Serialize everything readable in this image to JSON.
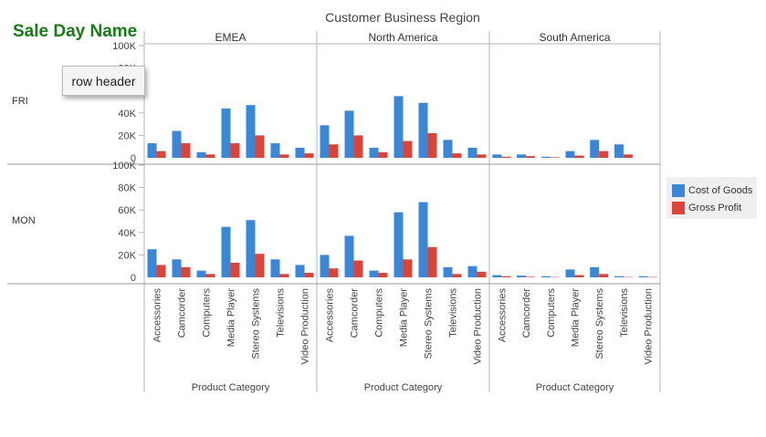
{
  "title": "Customer Business Region",
  "row_title": "Sale Day Name",
  "tooltip_text": "row header",
  "colors": {
    "cost": "#3a87d8",
    "profit": "#db4437",
    "row_title": "#1a7a1a"
  },
  "chart_data": {
    "type": "bar",
    "title": "Customer Business Region",
    "xlabel": "Product Category",
    "ylabel": "",
    "ylim": [
      0,
      100000
    ],
    "y_ticks": [
      "0",
      "20K",
      "40K",
      "60K",
      "80K",
      "100K"
    ],
    "y_tick_values": [
      0,
      20000,
      40000,
      60000,
      80000,
      100000
    ],
    "columns": [
      "EMEA",
      "North America",
      "South America"
    ],
    "rows": [
      "FRI",
      "MON"
    ],
    "categories": [
      "Accessories",
      "Camcorder",
      "Computers",
      "Media Player",
      "Stereo Systems",
      "Televisions",
      "Video Production"
    ],
    "legend": [
      "Cost of Goods",
      "Gross Profit"
    ],
    "legend_position": "right",
    "panels": [
      {
        "row": "FRI",
        "column": "EMEA",
        "series": [
          {
            "name": "Cost of Goods",
            "values": [
              13000,
              24000,
              5000,
              44000,
              47000,
              13000,
              9000
            ]
          },
          {
            "name": "Gross Profit",
            "values": [
              6000,
              13000,
              3000,
              13000,
              20000,
              3000,
              4000
            ]
          }
        ]
      },
      {
        "row": "FRI",
        "column": "North America",
        "series": [
          {
            "name": "Cost of Goods",
            "values": [
              29000,
              42000,
              9000,
              55000,
              49000,
              16000,
              9000
            ]
          },
          {
            "name": "Gross Profit",
            "values": [
              12000,
              20000,
              5000,
              15000,
              22000,
              4000,
              3000
            ]
          }
        ]
      },
      {
        "row": "FRI",
        "column": "South America",
        "series": [
          {
            "name": "Cost of Goods",
            "values": [
              3000,
              3000,
              1000,
              6000,
              16000,
              12000,
              null
            ]
          },
          {
            "name": "Gross Profit",
            "values": [
              1000,
              1500,
              500,
              2000,
              6000,
              3000,
              null
            ]
          }
        ]
      },
      {
        "row": "MON",
        "column": "EMEA",
        "series": [
          {
            "name": "Cost of Goods",
            "values": [
              25000,
              16000,
              6000,
              45000,
              51000,
              16000,
              11000
            ]
          },
          {
            "name": "Gross Profit",
            "values": [
              11000,
              9000,
              3000,
              13000,
              21000,
              3000,
              4000
            ]
          }
        ]
      },
      {
        "row": "MON",
        "column": "North America",
        "series": [
          {
            "name": "Cost of Goods",
            "values": [
              20000,
              37000,
              6000,
              58000,
              67000,
              9000,
              10000
            ]
          },
          {
            "name": "Gross Profit",
            "values": [
              8000,
              15000,
              4000,
              16000,
              27000,
              3000,
              5000
            ]
          }
        ]
      },
      {
        "row": "MON",
        "column": "South America",
        "series": [
          {
            "name": "Cost of Goods",
            "values": [
              2000,
              1500,
              1000,
              7000,
              9000,
              1000,
              1000
            ]
          },
          {
            "name": "Gross Profit",
            "values": [
              1000,
              500,
              300,
              2000,
              3000,
              300,
              300
            ]
          }
        ]
      }
    ]
  }
}
